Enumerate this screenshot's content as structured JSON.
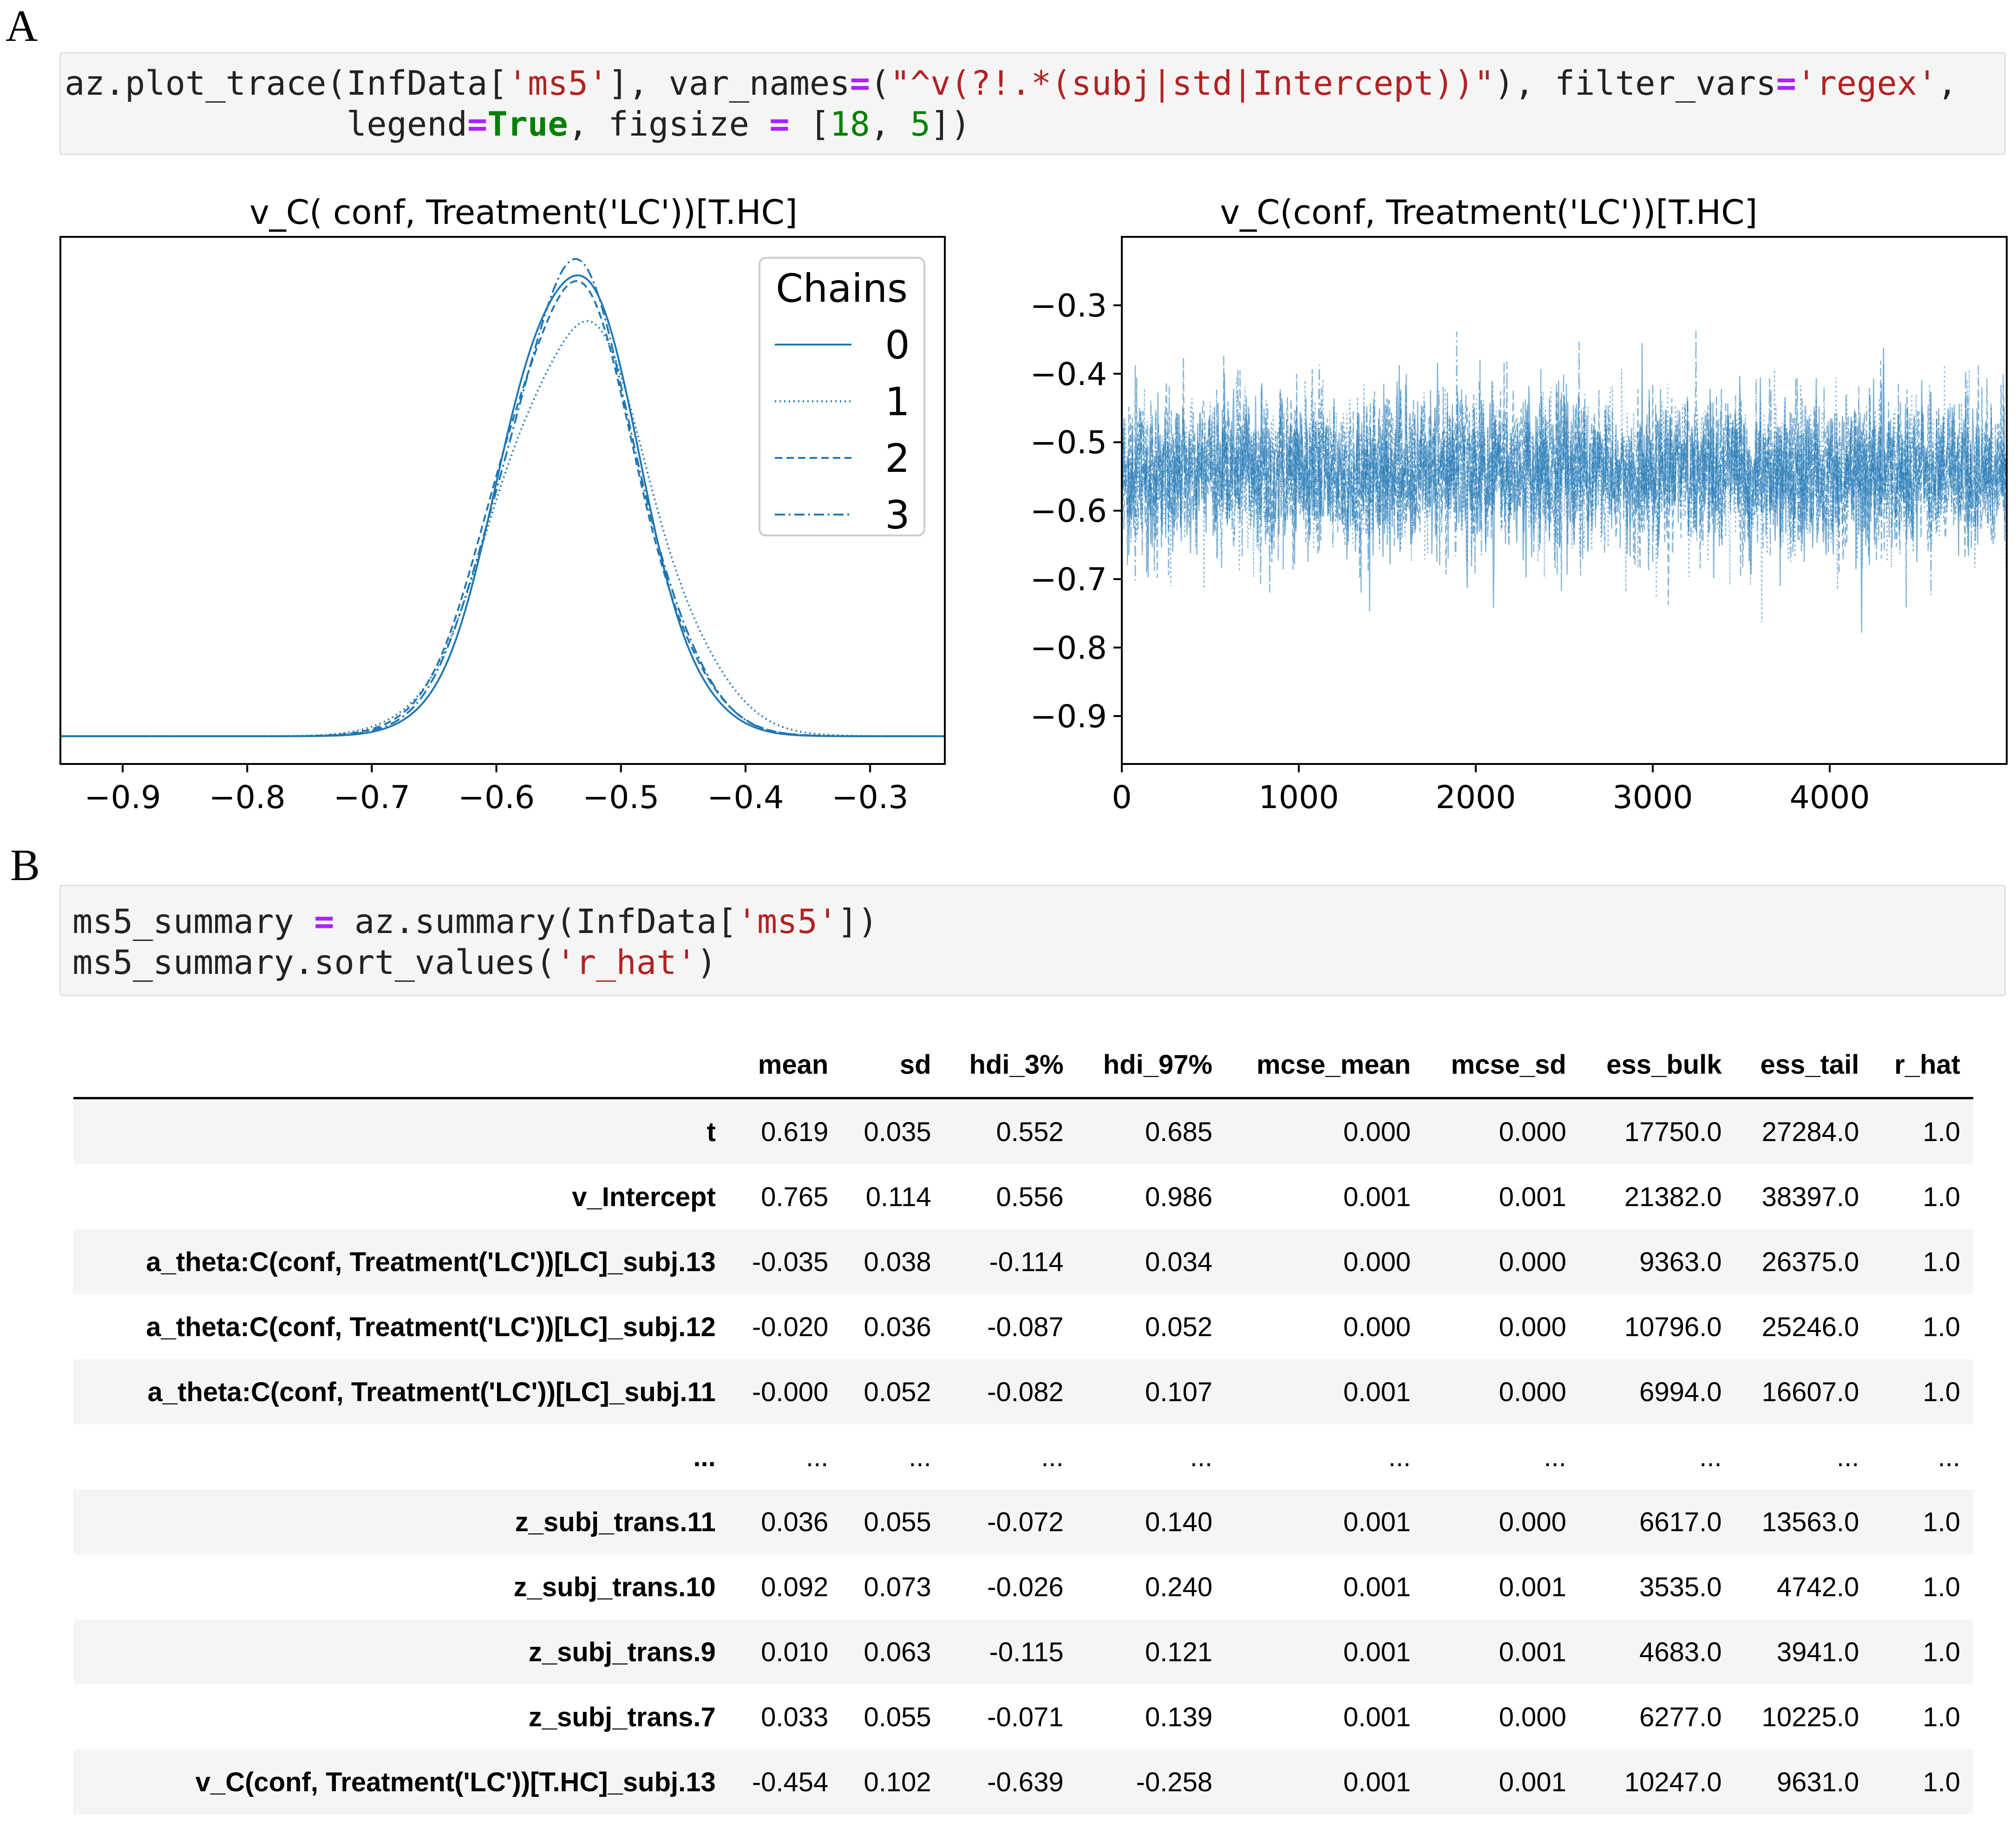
{
  "panel_a_label": "A",
  "panel_b_label": "B",
  "code_a": {
    "l1_func": "az.plot_trace(InfData[",
    "l1_s1": "'ms5'",
    "l1_mid": "], var_names",
    "l1_eq": "=",
    "l1_par": "(",
    "l1_s2": "\"^v(?!.*(subj|std|Intercept))\"",
    "l1_mid2": "), filter_vars",
    "l1_eq2": "=",
    "l1_s3": "'regex'",
    "l1_end": ",",
    "l2_pre": "              legend",
    "l2_eq": "=",
    "l2_kw": "True",
    "l2_mid": ", figsize ",
    "l2_eq2": "=",
    "l2_br": " [",
    "l2_n1": "18",
    "l2_sep": ", ",
    "l2_n2": "5",
    "l2_end": "])"
  },
  "code_b": {
    "l1_a": "ms5_summary ",
    "l1_eq": "=",
    "l1_b": " az.summary(InfData[",
    "l1_s": "'ms5'",
    "l1_c": "])",
    "l2_a": "ms5_summary.sort_values(",
    "l2_s": "'r_hat'",
    "l2_c": ")"
  },
  "chart_data": [
    {
      "type": "line",
      "title": "v_C( conf, Treatment('LC'))[T.HC]",
      "xlim": [
        -0.95,
        -0.24
      ],
      "xticks": [
        -0.9,
        -0.8,
        -0.7,
        -0.6,
        -0.5,
        -0.4,
        -0.3
      ],
      "xtick_labels": [
        "−0.9",
        "−0.8",
        "−0.7",
        "−0.6",
        "−0.5",
        "−0.4",
        "−0.3"
      ],
      "yticks_visible": false,
      "legend": {
        "title": "Chains",
        "placement": "top-right",
        "entries": [
          "0",
          "1",
          "2",
          "3"
        ]
      },
      "color": "#1f77b4",
      "series": [
        {
          "name": "0",
          "style": "solid",
          "mean": -0.54,
          "sd": 0.052,
          "peak": 7.6
        },
        {
          "name": "1",
          "style": "dotted",
          "mean": -0.535,
          "sd": 0.06,
          "peak": 6.6
        },
        {
          "name": "2",
          "style": "dashed",
          "mean": -0.542,
          "sd": 0.055,
          "peak": 7.2
        },
        {
          "name": "3",
          "style": "dashdot",
          "mean": -0.54,
          "sd": 0.054,
          "peak": 7.4
        }
      ]
    },
    {
      "type": "line",
      "title": "v_C(conf, Treatment('LC'))[T.HC]",
      "xlim": [
        0,
        5000
      ],
      "ylim": [
        -0.97,
        -0.2
      ],
      "xticks": [
        0,
        1000,
        2000,
        3000,
        4000
      ],
      "xtick_labels": [
        "0",
        "1000",
        "2000",
        "3000",
        "4000"
      ],
      "yticks": [
        -0.3,
        -0.4,
        -0.5,
        -0.6,
        -0.7,
        -0.8,
        -0.9
      ],
      "ytick_labels": [
        "−0.3",
        "−0.4",
        "−0.5",
        "−0.6",
        "−0.7",
        "−0.8",
        "−0.9"
      ],
      "color": "#1f77b4",
      "draws": 5000,
      "mean": -0.545,
      "sd": 0.058,
      "chains": 4
    }
  ],
  "table": {
    "columns": [
      "",
      "mean",
      "sd",
      "hdi_3%",
      "hdi_97%",
      "mcse_mean",
      "mcse_sd",
      "ess_bulk",
      "ess_tail",
      "r_hat"
    ],
    "rows": [
      [
        "t",
        "0.619",
        "0.035",
        "0.552",
        "0.685",
        "0.000",
        "0.000",
        "17750.0",
        "27284.0",
        "1.0"
      ],
      [
        "v_Intercept",
        "0.765",
        "0.114",
        "0.556",
        "0.986",
        "0.001",
        "0.001",
        "21382.0",
        "38397.0",
        "1.0"
      ],
      [
        "a_theta:C(conf, Treatment('LC'))[LC]_subj.13",
        "-0.035",
        "0.038",
        "-0.114",
        "0.034",
        "0.000",
        "0.000",
        "9363.0",
        "26375.0",
        "1.0"
      ],
      [
        "a_theta:C(conf, Treatment('LC'))[LC]_subj.12",
        "-0.020",
        "0.036",
        "-0.087",
        "0.052",
        "0.000",
        "0.000",
        "10796.0",
        "25246.0",
        "1.0"
      ],
      [
        "a_theta:C(conf, Treatment('LC'))[LC]_subj.11",
        "-0.000",
        "0.052",
        "-0.082",
        "0.107",
        "0.001",
        "0.000",
        "6994.0",
        "16607.0",
        "1.0"
      ],
      [
        "...",
        "...",
        "...",
        "...",
        "...",
        "...",
        "...",
        "...",
        "...",
        "..."
      ],
      [
        "z_subj_trans.11",
        "0.036",
        "0.055",
        "-0.072",
        "0.140",
        "0.001",
        "0.000",
        "6617.0",
        "13563.0",
        "1.0"
      ],
      [
        "z_subj_trans.10",
        "0.092",
        "0.073",
        "-0.026",
        "0.240",
        "0.001",
        "0.001",
        "3535.0",
        "4742.0",
        "1.0"
      ],
      [
        "z_subj_trans.9",
        "0.010",
        "0.063",
        "-0.115",
        "0.121",
        "0.001",
        "0.001",
        "4683.0",
        "3941.0",
        "1.0"
      ],
      [
        "z_subj_trans.7",
        "0.033",
        "0.055",
        "-0.071",
        "0.139",
        "0.001",
        "0.000",
        "6277.0",
        "10225.0",
        "1.0"
      ],
      [
        "v_C(conf, Treatment('LC'))[T.HC]_subj.13",
        "-0.454",
        "0.102",
        "-0.639",
        "-0.258",
        "0.001",
        "0.001",
        "10247.0",
        "9631.0",
        "1.0"
      ]
    ]
  }
}
